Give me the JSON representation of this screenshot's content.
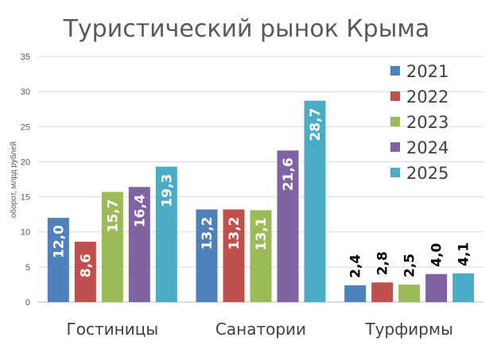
{
  "chart_data": {
    "type": "bar",
    "title": "Туристический рынок Крыма",
    "ylabel": "оборот, млрд рублей",
    "xlabel": "",
    "ylim": [
      0,
      35
    ],
    "yticks": [
      0,
      5,
      10,
      15,
      20,
      25,
      30,
      35
    ],
    "grid": true,
    "legend_position": "top-right",
    "categories": [
      "Гостиницы",
      "Санатории",
      "Турфирмы"
    ],
    "series": [
      {
        "name": "2021",
        "color": "#4f81bd",
        "values": [
          12.0,
          13.2,
          2.4
        ],
        "labels": [
          "12,0",
          "13,2",
          "2,4"
        ]
      },
      {
        "name": "2022",
        "color": "#c0504d",
        "values": [
          8.6,
          13.2,
          2.8
        ],
        "labels": [
          "8,6",
          "13,2",
          "2,8"
        ]
      },
      {
        "name": "2023",
        "color": "#9bbb59",
        "values": [
          15.7,
          13.1,
          2.5
        ],
        "labels": [
          "15,7",
          "13,1",
          "2,5"
        ]
      },
      {
        "name": "2024",
        "color": "#8064a2",
        "values": [
          16.4,
          21.6,
          4.0
        ],
        "labels": [
          "16,4",
          "21,6",
          "4,0"
        ]
      },
      {
        "name": "2025",
        "color": "#4bacc6",
        "values": [
          19.3,
          28.7,
          4.1
        ],
        "labels": [
          "19,3",
          "28,7",
          "4,1"
        ]
      }
    ]
  }
}
